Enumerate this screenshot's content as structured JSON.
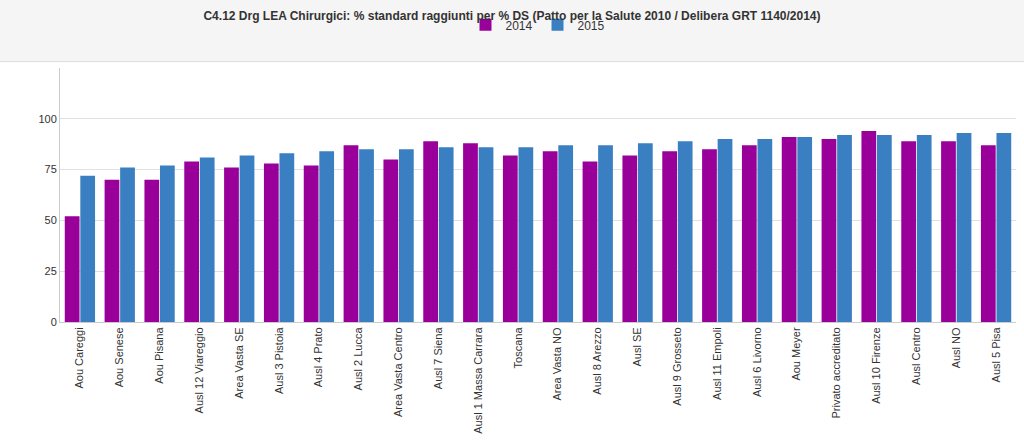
{
  "chart_data": {
    "type": "bar",
    "title": "C4.12 Drg LEA Chirurgici: % standard raggiunti per % DS (Patto per la Salute 2010 / Delibera GRT 1140/2014)",
    "categories": [
      "Aou Careggi",
      "Aou Senese",
      "Aou Pisana",
      "Ausl 12 Viareggio",
      "Area Vasta SE",
      "Ausl 3 Pistoia",
      "Ausl 4 Prato",
      "Ausl 2 Lucca",
      "Area Vasta Centro",
      "Ausl 7 Siena",
      "Ausl 1 Massa Carrara",
      "Toscana",
      "Area Vasta NO",
      "Ausl 8 Arezzo",
      "Ausl SE",
      "Ausl 9 Grosseto",
      "Ausl 11 Empoli",
      "Ausl 6 Livorno",
      "Aou Meyer",
      "Privato accreditato",
      "Ausl 10 Firenze",
      "Ausl Centro",
      "Ausl NO",
      "Ausl 5 Pisa"
    ],
    "series": [
      {
        "name": "2014",
        "color": "#990099",
        "values": [
          52,
          70,
          70,
          79,
          76,
          78,
          77,
          87,
          80,
          89,
          88,
          82,
          84,
          79,
          82,
          84,
          85,
          87,
          91,
          90,
          94,
          89,
          89,
          87
        ]
      },
      {
        "name": "2015",
        "color": "#3a7fc1",
        "values": [
          72,
          76,
          77,
          81,
          82,
          83,
          84,
          85,
          85,
          86,
          86,
          86,
          87,
          87,
          88,
          89,
          90,
          90,
          91,
          92,
          92,
          92,
          93,
          93
        ]
      }
    ],
    "ylim": [
      0,
      125
    ],
    "yticks": [
      0,
      25,
      50,
      75,
      100
    ],
    "grid": true,
    "legend": "top"
  }
}
